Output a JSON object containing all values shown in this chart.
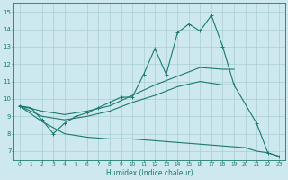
{
  "xlabel": "Humidex (Indice chaleur)",
  "bg_color": "#cde8ee",
  "grid_color": "#aacdd4",
  "line_color": "#1a7a6e",
  "xlim": [
    -0.5,
    23.5
  ],
  "ylim": [
    6.5,
    15.5
  ],
  "xticks": [
    0,
    1,
    2,
    3,
    4,
    5,
    6,
    7,
    8,
    9,
    10,
    11,
    12,
    13,
    14,
    15,
    16,
    17,
    18,
    19,
    20,
    21,
    22,
    23
  ],
  "yticks": [
    7,
    8,
    9,
    10,
    11,
    12,
    13,
    14,
    15
  ],
  "series_main": {
    "x": [
      0,
      1,
      2,
      3,
      4,
      5,
      6,
      7,
      8,
      9,
      10,
      11,
      12,
      13,
      14,
      15,
      16,
      17,
      18,
      19,
      21,
      22,
      23
    ],
    "y": [
      9.6,
      9.5,
      8.8,
      8.0,
      8.6,
      9.0,
      9.2,
      9.5,
      9.8,
      10.1,
      10.1,
      11.4,
      12.9,
      11.4,
      13.8,
      14.3,
      13.9,
      14.8,
      13.0,
      10.8,
      8.6,
      6.9,
      6.7
    ]
  },
  "series_upper": {
    "x": [
      0,
      2,
      4,
      6,
      8,
      10,
      12,
      14,
      16,
      18,
      19
    ],
    "y": [
      9.6,
      9.3,
      9.1,
      9.3,
      9.6,
      10.2,
      10.8,
      11.3,
      11.8,
      11.7,
      11.7
    ]
  },
  "series_lower": {
    "x": [
      0,
      2,
      4,
      6,
      8,
      10,
      12,
      14,
      16,
      18,
      20,
      21,
      22,
      23
    ],
    "y": [
      9.6,
      8.7,
      8.0,
      7.8,
      7.7,
      7.7,
      7.6,
      7.5,
      7.4,
      7.3,
      7.2,
      7.0,
      6.9,
      6.7
    ]
  },
  "series_mid": {
    "x": [
      0,
      2,
      4,
      6,
      8,
      10,
      12,
      14,
      16,
      18,
      19
    ],
    "y": [
      9.6,
      9.0,
      8.8,
      9.0,
      9.3,
      9.8,
      10.2,
      10.7,
      11.0,
      10.8,
      10.8
    ]
  }
}
